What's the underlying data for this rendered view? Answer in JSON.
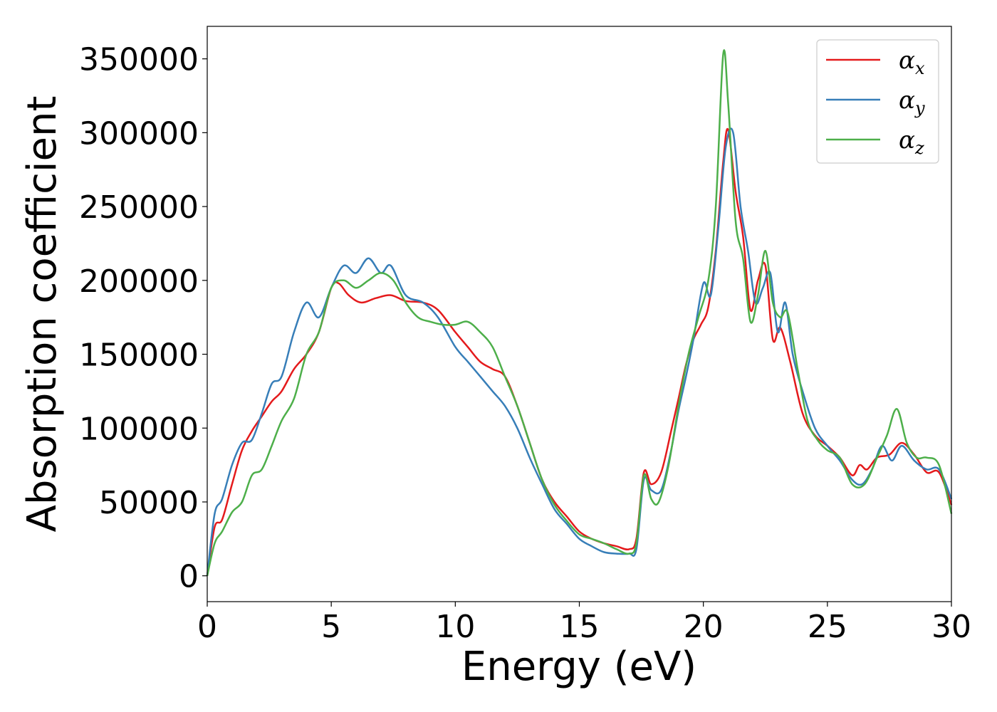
{
  "chart_data": {
    "type": "line",
    "xlabel": "Energy (eV)",
    "ylabel": "Absorption coefficient",
    "xlim": [
      0,
      30
    ],
    "ylim": [
      -17500,
      372000
    ],
    "x_ticks": [
      0,
      5,
      10,
      15,
      20,
      25,
      30
    ],
    "y_ticks": [
      0,
      50000,
      100000,
      150000,
      200000,
      250000,
      300000,
      350000
    ],
    "grid": false,
    "legend_position": "top-right",
    "series": [
      {
        "name": "α_x",
        "symbol": "α",
        "subscript": "x",
        "color": "#e41a1c",
        "x": [
          0,
          0.3,
          0.6,
          1.0,
          1.4,
          1.8,
          2.2,
          2.6,
          3.0,
          3.5,
          4.0,
          4.5,
          5.0,
          5.3,
          5.7,
          6.2,
          6.8,
          7.4,
          8.0,
          8.7,
          9.3,
          10.0,
          10.5,
          11.0,
          11.5,
          12.0,
          12.5,
          13.0,
          13.5,
          14.0,
          14.5,
          15.0,
          15.5,
          16.0,
          16.5,
          17.0,
          17.3,
          17.6,
          17.9,
          18.3,
          18.7,
          19.0,
          19.3,
          19.6,
          19.9,
          20.2,
          20.5,
          20.8,
          21.0,
          21.3,
          21.6,
          21.9,
          22.2,
          22.5,
          22.8,
          23.1,
          23.5,
          24.0,
          24.5,
          25.0,
          25.5,
          26.0,
          26.3,
          26.6,
          27.0,
          27.5,
          28.0,
          28.5,
          29.0,
          29.5,
          30.0
        ],
        "y": [
          0,
          33000,
          38000,
          62000,
          85000,
          98000,
          108000,
          118000,
          125000,
          140000,
          150000,
          165000,
          195000,
          198000,
          190000,
          185000,
          188000,
          190000,
          186000,
          185000,
          180000,
          165000,
          155000,
          145000,
          140000,
          135000,
          115000,
          90000,
          65000,
          50000,
          40000,
          30000,
          25000,
          22000,
          20000,
          18000,
          25000,
          70000,
          62000,
          70000,
          98000,
          120000,
          143000,
          160000,
          170000,
          182000,
          220000,
          280000,
          302000,
          260000,
          230000,
          180000,
          200000,
          210000,
          160000,
          168000,
          145000,
          110000,
          95000,
          88000,
          80000,
          68000,
          75000,
          72000,
          80000,
          82000,
          90000,
          82000,
          70000,
          70000,
          48000
        ]
      },
      {
        "name": "α_y",
        "symbol": "α",
        "subscript": "y",
        "color": "#377eb8",
        "x": [
          0,
          0.3,
          0.6,
          1.0,
          1.4,
          1.8,
          2.2,
          2.6,
          3.0,
          3.5,
          4.0,
          4.5,
          5.0,
          5.5,
          6.0,
          6.5,
          7.0,
          7.4,
          8.0,
          8.7,
          9.3,
          10.0,
          10.5,
          11.0,
          11.5,
          12.0,
          12.5,
          13.0,
          13.5,
          14.0,
          14.5,
          15.0,
          15.5,
          16.0,
          16.5,
          17.0,
          17.3,
          17.6,
          17.9,
          18.3,
          18.7,
          19.0,
          19.3,
          19.6,
          20.0,
          20.3,
          20.6,
          20.9,
          21.2,
          21.5,
          21.8,
          22.1,
          22.4,
          22.7,
          23.0,
          23.3,
          23.6,
          24.0,
          24.5,
          25.0,
          25.5,
          26.0,
          26.4,
          26.8,
          27.2,
          27.6,
          28.0,
          28.5,
          29.0,
          29.5,
          30.0
        ],
        "y": [
          0,
          42000,
          52000,
          75000,
          90000,
          92000,
          110000,
          130000,
          135000,
          165000,
          185000,
          175000,
          195000,
          210000,
          205000,
          215000,
          205000,
          210000,
          190000,
          185000,
          175000,
          155000,
          145000,
          135000,
          125000,
          115000,
          100000,
          80000,
          62000,
          45000,
          35000,
          25000,
          20000,
          16000,
          15000,
          15000,
          18000,
          65000,
          58000,
          58000,
          85000,
          112000,
          135000,
          160000,
          198000,
          190000,
          235000,
          290000,
          300000,
          250000,
          220000,
          185000,
          195000,
          205000,
          165000,
          185000,
          150000,
          125000,
          100000,
          88000,
          78000,
          65000,
          62000,
          72000,
          88000,
          78000,
          88000,
          78000,
          72000,
          72000,
          52000
        ]
      },
      {
        "name": "α_z",
        "symbol": "α",
        "subscript": "z",
        "color": "#4daf4a",
        "x": [
          0,
          0.3,
          0.6,
          1.0,
          1.4,
          1.8,
          2.2,
          2.6,
          3.0,
          3.5,
          4.0,
          4.5,
          5.0,
          5.5,
          6.0,
          6.5,
          7.0,
          7.5,
          8.0,
          8.5,
          9.0,
          9.5,
          10.0,
          10.5,
          11.0,
          11.5,
          12.0,
          12.5,
          13.0,
          13.5,
          14.0,
          14.5,
          15.0,
          15.5,
          16.0,
          16.5,
          17.0,
          17.3,
          17.6,
          17.9,
          18.2,
          18.6,
          19.0,
          19.4,
          19.8,
          20.2,
          20.5,
          20.8,
          21.0,
          21.3,
          21.6,
          21.9,
          22.2,
          22.5,
          22.8,
          23.1,
          23.4,
          23.8,
          24.2,
          24.6,
          25.0,
          25.5,
          26.0,
          26.5,
          27.0,
          27.4,
          27.8,
          28.2,
          28.6,
          29.0,
          29.5,
          30.0
        ],
        "y": [
          0,
          22000,
          30000,
          43000,
          50000,
          68000,
          72000,
          88000,
          105000,
          120000,
          150000,
          165000,
          195000,
          200000,
          195000,
          200000,
          205000,
          200000,
          185000,
          175000,
          172000,
          170000,
          170000,
          172000,
          165000,
          155000,
          135000,
          115000,
          90000,
          65000,
          48000,
          37000,
          28000,
          25000,
          22000,
          18000,
          15000,
          22000,
          68000,
          52000,
          50000,
          75000,
          115000,
          150000,
          175000,
          200000,
          250000,
          353000,
          320000,
          240000,
          215000,
          172000,
          190000,
          220000,
          185000,
          175000,
          178000,
          140000,
          105000,
          92000,
          85000,
          80000,
          62000,
          62000,
          80000,
          95000,
          113000,
          90000,
          80000,
          80000,
          75000,
          42000
        ]
      }
    ]
  }
}
